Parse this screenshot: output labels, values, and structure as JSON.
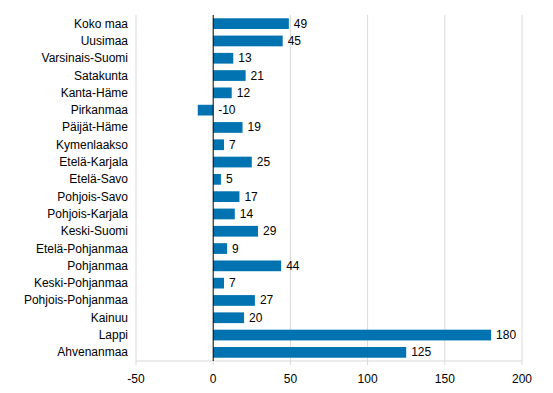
{
  "chart_data": {
    "type": "bar",
    "orientation": "horizontal",
    "categories": [
      "Koko maa",
      "Uusimaa",
      "Varsinais-Suomi",
      "Satakunta",
      "Kanta-Häme",
      "Pirkanmaa",
      "Päijät-Häme",
      "Kymenlaakso",
      "Etelä-Karjala",
      "Etelä-Savo",
      "Pohjois-Savo",
      "Pohjois-Karjala",
      "Keski-Suomi",
      "Etelä-Pohjanmaa",
      "Pohjanmaa",
      "Keski-Pohjanmaa",
      "Pohjois-Pohjanmaa",
      "Kainuu",
      "Lappi",
      "Ahvenanmaa"
    ],
    "values": [
      49,
      45,
      13,
      21,
      12,
      -10,
      19,
      7,
      25,
      5,
      17,
      14,
      29,
      9,
      44,
      7,
      27,
      20,
      180,
      125
    ],
    "color": "#0073b0",
    "xlim": [
      -50,
      200
    ],
    "xticks": [
      -50,
      0,
      50,
      100,
      150,
      200
    ],
    "grid": true,
    "data_labels": true
  }
}
